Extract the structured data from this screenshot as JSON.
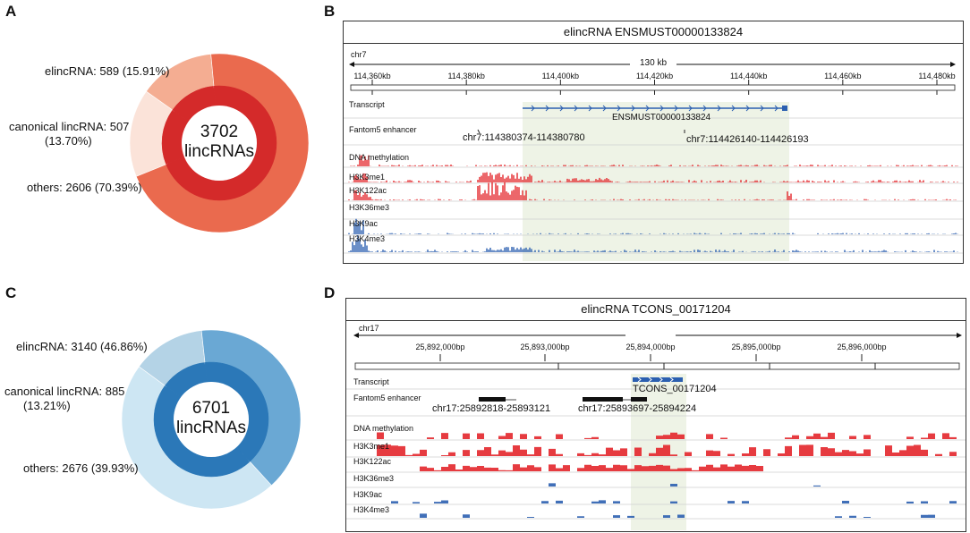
{
  "panel_letters": {
    "A": "A",
    "B": "B",
    "C": "C",
    "D": "D"
  },
  "colors": {
    "red_dark": "#d42a2a",
    "red_mid": "#ea6a4e",
    "red_light": "#f4ad92",
    "red_pale": "#fbe3d9",
    "blue_dark": "#2b78b8",
    "blue_mid": "#6aa8d4",
    "blue_light": "#b4d3e6",
    "blue_pale": "#cde6f3",
    "track_red": "#e3262b",
    "track_blue": "#2b5fb0",
    "highlight": "#eef3e6"
  },
  "chart_data": [
    {
      "type": "pie",
      "title": "3702 lincRNAs",
      "center_number": "3702",
      "center_unit": "lincRNAs",
      "labels": [
        "elincRNA: 589 (15.91%)",
        "canonical lincRNA: 507",
        "(13.70%)",
        "others: 2606 (70.39%)"
      ],
      "categories": [
        "elincRNA",
        "canonical lincRNA",
        "others"
      ],
      "values": [
        589,
        507,
        2606
      ],
      "percents": [
        15.91,
        13.7,
        70.39
      ]
    },
    {
      "type": "pie",
      "title": "6701 lincRNAs",
      "center_number": "6701",
      "center_unit": "lincRNAs",
      "labels": [
        "elincRNA: 3140 (46.86%)",
        "canonical lincRNA: 885",
        "(13.21%)",
        "others: 2676 (39.93%)"
      ],
      "categories": [
        "elincRNA",
        "canonical lincRNA",
        "others"
      ],
      "values": [
        3140,
        885,
        2676
      ],
      "percents": [
        46.86,
        13.21,
        39.93
      ]
    }
  ],
  "browserB": {
    "title": "elincRNA ENSMUST00000133824",
    "chrom": "chr7",
    "span": "130 kb",
    "ticks": [
      "114,360kb",
      "114,380kb",
      "114,400kb",
      "114,420kb",
      "114,440kb",
      "114,460kb",
      "114,480kb"
    ],
    "tracks": [
      "Transcript",
      "Fantom5 enhancer",
      "DNA methylation",
      "H3K3me1",
      "H3K122ac",
      "H3K36me3",
      "H3K9ac",
      "H3K4me3"
    ],
    "transcript_name": "ENSMUST00000133824",
    "enhancer1": "chr7:114380374-114380780",
    "enhancer2": "chr7:114426140-114426193"
  },
  "browserD": {
    "title": "elincRNA TCONS_00171204",
    "chrom": "chr17",
    "ticks": [
      "25,892,000bp",
      "25,893,000bp",
      "25,894,000bp",
      "25,895,000bp",
      "25,896,000bp"
    ],
    "tracks": [
      "Transcript",
      "Fantom5 enhancer",
      "DNA methylation",
      "H3K3me1",
      "H3K122ac",
      "H3K36me3",
      "H3K9ac",
      "H3K4me3"
    ],
    "transcript_name": "TCONS_00171204",
    "enhancer1": "chr17:25892818-25893121",
    "enhancer2": "chr17:25893697-25894224"
  }
}
